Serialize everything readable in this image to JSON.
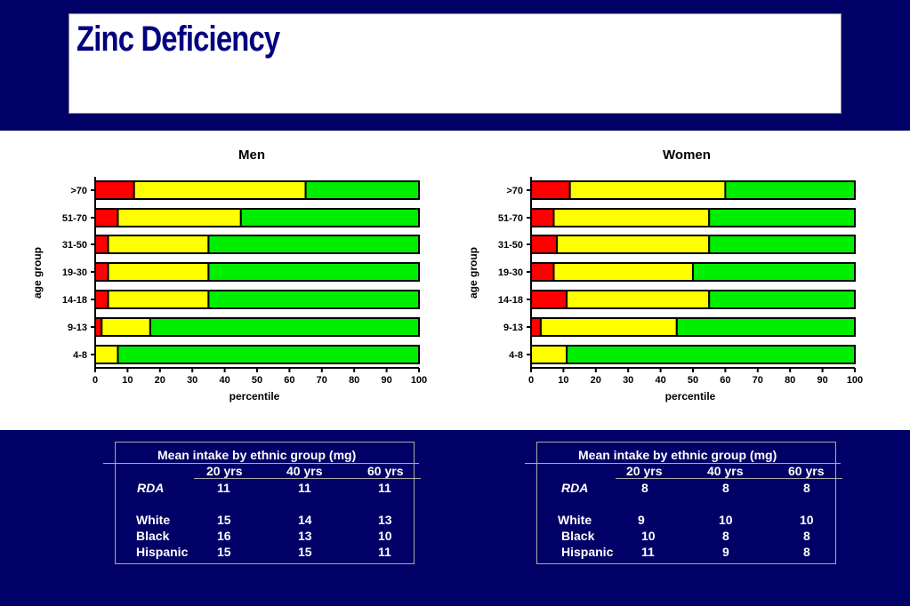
{
  "title": "Zinc Deficiency",
  "colors": {
    "low": "#ff0000",
    "mid": "#ffff00",
    "high": "#00ee00",
    "background": "#000066"
  },
  "chart_data": [
    {
      "type": "bar",
      "orientation": "horizontal-stacked",
      "title": "Men",
      "xlabel": "percentile",
      "ylabel": "age group",
      "xlim": [
        0,
        100
      ],
      "xticks": [
        0,
        10,
        20,
        30,
        40,
        50,
        60,
        70,
        80,
        90,
        100
      ],
      "categories": [
        ">70",
        "51-70",
        "31-50",
        "19-30",
        "14-18",
        "9-13",
        "4-8"
      ],
      "boundaries": [
        [
          12,
          65
        ],
        [
          7,
          45
        ],
        [
          4,
          35
        ],
        [
          4,
          35
        ],
        [
          4,
          35
        ],
        [
          2,
          17
        ],
        [
          0,
          7
        ]
      ]
    },
    {
      "type": "bar",
      "orientation": "horizontal-stacked",
      "title": "Women",
      "xlabel": "percentile",
      "ylabel": "age group",
      "xlim": [
        0,
        100
      ],
      "xticks": [
        0,
        10,
        20,
        30,
        40,
        50,
        60,
        70,
        80,
        90,
        100
      ],
      "categories": [
        ">70",
        "51-70",
        "31-50",
        "19-30",
        "14-18",
        "9-13",
        "4-8"
      ],
      "boundaries": [
        [
          12,
          60
        ],
        [
          7,
          55
        ],
        [
          8,
          55
        ],
        [
          7,
          50
        ],
        [
          11,
          55
        ],
        [
          3,
          45
        ],
        [
          0,
          11
        ]
      ]
    }
  ],
  "tables": [
    {
      "caption": "Mean intake by ethnic group (mg)",
      "columns": [
        "20 yrs",
        "40 yrs",
        "60 yrs"
      ],
      "rda": {
        "label": "RDA",
        "values": [
          "11",
          "11",
          "11"
        ]
      },
      "rows": [
        {
          "label": "White",
          "values": [
            "15",
            "14",
            "13"
          ]
        },
        {
          "label": "Black",
          "values": [
            "16",
            "13",
            "10"
          ]
        },
        {
          "label": "Hispanic",
          "values": [
            "15",
            "15",
            "11"
          ]
        }
      ]
    },
    {
      "caption": "Mean intake by ethnic group (mg)",
      "columns": [
        "20 yrs",
        "40 yrs",
        "60 yrs"
      ],
      "rda": {
        "label": "RDA",
        "values": [
          "8",
          "8",
          "8"
        ]
      },
      "rows": [
        {
          "label": "White",
          "values": [
            "9",
            "10",
            "10"
          ]
        },
        {
          "label": "Black",
          "values": [
            "10",
            "8",
            "8"
          ]
        },
        {
          "label": "Hispanic",
          "values": [
            "11",
            "9",
            "8"
          ]
        }
      ]
    }
  ]
}
